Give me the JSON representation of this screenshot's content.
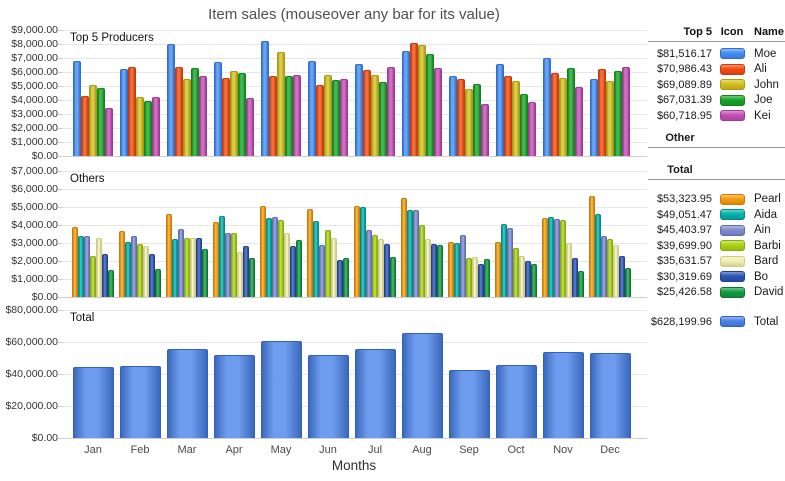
{
  "title": "Item sales (mouseover any bar for its value)",
  "x_axis_label": "Months",
  "months": [
    "Jan",
    "Feb",
    "Mar",
    "Apr",
    "May",
    "Jun",
    "Jul",
    "Aug",
    "Sep",
    "Oct",
    "Nov",
    "Dec"
  ],
  "chart_data": [
    {
      "type": "bar",
      "title": "Top 5 Producers",
      "ylim": [
        0,
        9000
      ],
      "ytick_step": 1000,
      "grid": true,
      "series": [
        {
          "name": "Moe",
          "fill": "#448df2",
          "border": "#2d6fd1",
          "values": [
            6800,
            6200,
            8000,
            6700,
            8200,
            6750,
            6550,
            7500,
            5700,
            6600,
            7000,
            5500
          ]
        },
        {
          "name": "Ali",
          "fill": "#f24a0e",
          "border": "#c93c09",
          "values": [
            4300,
            6350,
            6350,
            5550,
            5700,
            5100,
            6150,
            8100,
            5500,
            5700,
            5950,
            6200
          ]
        },
        {
          "name": "John",
          "fill": "#d3c01c",
          "border": "#ab9b12",
          "values": [
            5100,
            4200,
            5500,
            6100,
            7400,
            5800,
            5750,
            7950,
            4800,
            5350,
            5550,
            5350
          ]
        },
        {
          "name": "Joe",
          "fill": "#17a527",
          "border": "#12831f",
          "values": [
            4850,
            3950,
            6250,
            5950,
            5700,
            5450,
            5300,
            7300,
            5150,
            4450,
            6250,
            6100
          ]
        },
        {
          "name": "Kei",
          "fill": "#c44cb4",
          "border": "#9e3a91",
          "values": [
            3450,
            4200,
            5700,
            4150,
            5750,
            5500,
            6350,
            6300,
            3700,
            3850,
            4950,
            6350
          ]
        }
      ]
    },
    {
      "type": "bar",
      "title": "Others",
      "ylim": [
        0,
        7000
      ],
      "ytick_step": 1000,
      "grid": true,
      "series": [
        {
          "name": "Pearl",
          "fill": "#f79c0e",
          "border": "#c77d08",
          "values": [
            3900,
            3650,
            4600,
            4150,
            5050,
            4900,
            5050,
            5500,
            3050,
            3050,
            4400,
            5600
          ]
        },
        {
          "name": "Aida",
          "fill": "#00b2a9",
          "border": "#008c85",
          "values": [
            3400,
            3050,
            3200,
            4500,
            4400,
            4200,
            5000,
            4850,
            3000,
            4050,
            4450,
            4600
          ]
        },
        {
          "name": "Ain",
          "fill": "#7e8bd1",
          "border": "#5f6cb5",
          "values": [
            3400,
            3400,
            3800,
            3550,
            4450,
            2900,
            3700,
            4850,
            3450,
            3850,
            4350,
            3400
          ]
        },
        {
          "name": "Barbi",
          "fill": "#a9d513",
          "border": "#87ab0e",
          "values": [
            2300,
            2950,
            3300,
            3550,
            4250,
            3700,
            3450,
            4000,
            2150,
            2700,
            4300,
            3200
          ]
        },
        {
          "name": "Bard",
          "fill": "#f2efae",
          "border": "#cfcb85",
          "values": [
            3250,
            2850,
            3300,
            2500,
            3550,
            3250,
            3200,
            3200,
            2200,
            2300,
            3000,
            2900
          ]
        },
        {
          "name": "Bo",
          "fill": "#2a55b8",
          "border": "#1f4090",
          "values": [
            2400,
            2400,
            3250,
            2850,
            2850,
            2050,
            2950,
            2950,
            1850,
            2000,
            2150,
            2300
          ]
        },
        {
          "name": "David",
          "fill": "#119b41",
          "border": "#0c7631",
          "values": [
            1500,
            1550,
            2650,
            2150,
            3150,
            2150,
            2200,
            2900,
            2100,
            1850,
            1450,
            1600
          ]
        }
      ]
    },
    {
      "type": "bar",
      "title": "Total",
      "ylim": [
        0,
        80000
      ],
      "ytick_step": 20000,
      "grid": true,
      "series": [
        {
          "name": "Total",
          "fill": "#4a83ea",
          "border": "#3160c4",
          "values": [
            44650,
            44750,
            55900,
            51700,
            60450,
            51750,
            55650,
            65400,
            42650,
            45750,
            53800,
            53100
          ]
        }
      ]
    }
  ],
  "legend": {
    "header": {
      "top5": "Top 5",
      "icon": "Icon",
      "name": "Name"
    },
    "top5_rows": [
      {
        "amount": "$81,516.17",
        "name": "Moe",
        "fill": "#448df2",
        "border": "#2d6fd1"
      },
      {
        "amount": "$70,986.43",
        "name": "Ali",
        "fill": "#f24a0e",
        "border": "#c93c09"
      },
      {
        "amount": "$69,089.89",
        "name": "John",
        "fill": "#d3c01c",
        "border": "#ab9b12"
      },
      {
        "amount": "$67,031.39",
        "name": "Joe",
        "fill": "#17a527",
        "border": "#12831f"
      },
      {
        "amount": "$60,718.95",
        "name": "Kei",
        "fill": "#c44cb4",
        "border": "#9e3a91"
      }
    ],
    "other_header": "Other",
    "total_header": "Total",
    "other_rows": [
      {
        "amount": "$53,323.95",
        "name": "Pearl",
        "fill": "#f79c0e",
        "border": "#c77d08"
      },
      {
        "amount": "$49,051.47",
        "name": "Aida",
        "fill": "#00b2a9",
        "border": "#008c85"
      },
      {
        "amount": "$45,403.97",
        "name": "Ain",
        "fill": "#7e8bd1",
        "border": "#5f6cb5"
      },
      {
        "amount": "$39,699.90",
        "name": "Barbi",
        "fill": "#a9d513",
        "border": "#87ab0e"
      },
      {
        "amount": "$35,631.57",
        "name": "Bard",
        "fill": "#f2efae",
        "border": "#cfcb85"
      },
      {
        "amount": "$30,319.69",
        "name": "Bo",
        "fill": "#2a55b8",
        "border": "#1f4090"
      },
      {
        "amount": "$25,426.58",
        "name": "David",
        "fill": "#119b41",
        "border": "#0c7631"
      }
    ],
    "grand_total": {
      "amount": "$628,199.96",
      "name": "Total",
      "fill": "#4a83ea",
      "border": "#3160c4"
    }
  }
}
